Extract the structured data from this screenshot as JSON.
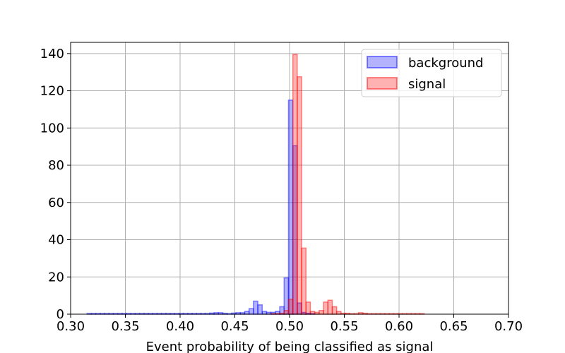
{
  "chart_data": {
    "type": "histogram",
    "xlabel": "Event probability of being classified as signal",
    "ylabel": "",
    "xlim": [
      0.3,
      0.7
    ],
    "ylim": [
      0,
      146
    ],
    "grid": true,
    "legend_position": "top-right",
    "x_ticks": [
      "0.30",
      "0.35",
      "0.40",
      "0.45",
      "0.50",
      "0.55",
      "0.60",
      "0.65",
      "0.70"
    ],
    "x_tick_values": [
      0.3,
      0.35,
      0.4,
      0.45,
      0.5,
      0.55,
      0.6,
      0.65,
      0.7
    ],
    "y_ticks": [
      "0",
      "20",
      "40",
      "60",
      "80",
      "100",
      "120",
      "140"
    ],
    "y_tick_values": [
      0,
      20,
      40,
      60,
      80,
      100,
      120,
      140
    ],
    "series": [
      {
        "name": "background",
        "color": "#0000ff",
        "bins": [
          [
            0.315,
            0.4
          ],
          [
            0.319,
            0.4
          ],
          [
            0.323,
            0.4
          ],
          [
            0.327,
            0.4
          ],
          [
            0.331,
            0.4
          ],
          [
            0.335,
            0.4
          ],
          [
            0.339,
            0.4
          ],
          [
            0.343,
            0.4
          ],
          [
            0.347,
            0.4
          ],
          [
            0.351,
            0.4
          ],
          [
            0.355,
            0.4
          ],
          [
            0.359,
            0.4
          ],
          [
            0.363,
            0.4
          ],
          [
            0.367,
            0.4
          ],
          [
            0.371,
            0.4
          ],
          [
            0.375,
            0.4
          ],
          [
            0.379,
            0.4
          ],
          [
            0.383,
            0.4
          ],
          [
            0.387,
            0.4
          ],
          [
            0.391,
            0.4
          ],
          [
            0.395,
            0.4
          ],
          [
            0.399,
            0.4
          ],
          [
            0.403,
            0.4
          ],
          [
            0.407,
            0.4
          ],
          [
            0.411,
            0.4
          ],
          [
            0.415,
            0.4
          ],
          [
            0.419,
            0.4
          ],
          [
            0.423,
            0.4
          ],
          [
            0.427,
            0.6
          ],
          [
            0.431,
            0.8
          ],
          [
            0.435,
            0.8
          ],
          [
            0.439,
            0.5
          ],
          [
            0.443,
            0.3
          ],
          [
            0.447,
            0.6
          ],
          [
            0.451,
            0.8
          ],
          [
            0.455,
            0.8
          ],
          [
            0.459,
            1.5
          ],
          [
            0.463,
            3
          ],
          [
            0.467,
            7
          ],
          [
            0.471,
            5
          ],
          [
            0.475,
            1.5
          ],
          [
            0.479,
            1
          ],
          [
            0.483,
            1
          ],
          [
            0.487,
            1.5
          ],
          [
            0.491,
            4
          ],
          [
            0.495,
            19.5
          ],
          [
            0.499,
            115
          ],
          [
            0.503,
            90.5
          ],
          [
            0.507,
            6
          ],
          [
            0.511,
            1
          ],
          [
            0.515,
            0.5
          ],
          [
            0.519,
            0.3
          ]
        ]
      },
      {
        "name": "signal",
        "color": "#ff0000",
        "bins": [
          [
            0.483,
            0.3
          ],
          [
            0.487,
            0.3
          ],
          [
            0.491,
            0.5
          ],
          [
            0.495,
            2
          ],
          [
            0.499,
            8
          ],
          [
            0.503,
            139.5
          ],
          [
            0.507,
            127.5
          ],
          [
            0.511,
            35.5
          ],
          [
            0.515,
            6.5
          ],
          [
            0.519,
            1.5
          ],
          [
            0.523,
            1
          ],
          [
            0.527,
            2
          ],
          [
            0.531,
            6.5
          ],
          [
            0.535,
            7.5
          ],
          [
            0.539,
            4
          ],
          [
            0.543,
            1.5
          ],
          [
            0.547,
            0.5
          ],
          [
            0.551,
            0.5
          ],
          [
            0.555,
            0.3
          ],
          [
            0.559,
            0.3
          ],
          [
            0.563,
            0.8
          ],
          [
            0.567,
            0.5
          ],
          [
            0.571,
            0.3
          ],
          [
            0.575,
            0.3
          ],
          [
            0.579,
            0.3
          ],
          [
            0.583,
            0.3
          ],
          [
            0.587,
            0.3
          ],
          [
            0.591,
            0.3
          ],
          [
            0.595,
            0.3
          ],
          [
            0.599,
            0.3
          ],
          [
            0.603,
            0.3
          ],
          [
            0.607,
            0.3
          ],
          [
            0.611,
            0.3
          ],
          [
            0.615,
            0.3
          ],
          [
            0.619,
            0.3
          ]
        ]
      }
    ]
  }
}
